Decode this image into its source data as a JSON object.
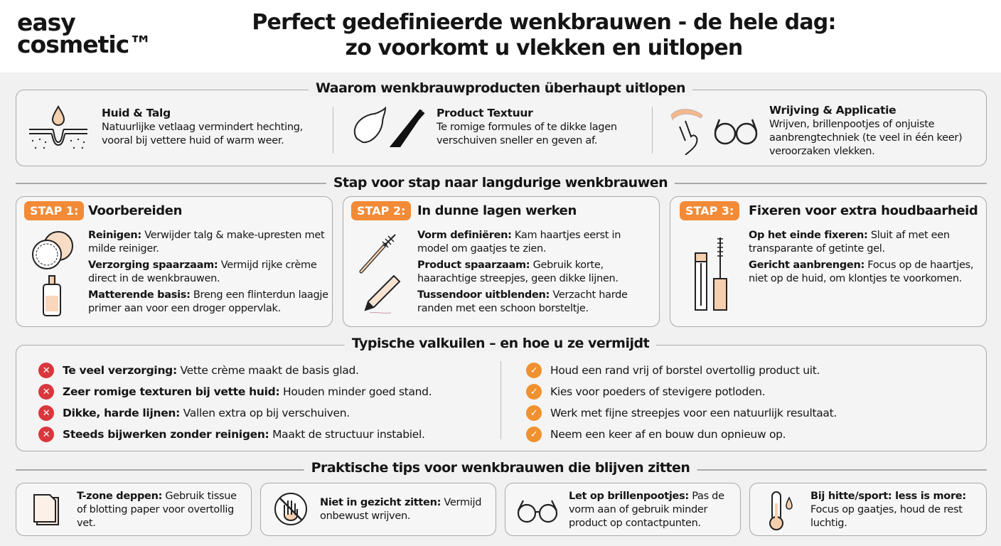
{
  "logo": {
    "line1": "easy",
    "line2": "cosmetic™"
  },
  "title": {
    "line1": "Perfect gedefinieerde wenkbrauwen - de hele dag:",
    "line2": "zo voorkomt u vlekken en uitlopen"
  },
  "colors": {
    "accent": "#f28a36",
    "error": "#d9363e",
    "check": "#f0912f",
    "skin": "#f6cfae"
  },
  "why": {
    "heading": "Waarom wenkbrauwproducten überhaupt uitlopen",
    "items": [
      {
        "icon": "skin-sebum-icon",
        "title": "Huid & Talg",
        "text": "Natuurlijke vetlaag vermindert hechting, vooral bij vettere huid of warm weer."
      },
      {
        "icon": "cream-texture-icon",
        "title": "Product Textuur",
        "text": "Te romige formules of te dikke lagen verschuiven sneller en geven af."
      },
      {
        "icon": "finger-glasses-icon",
        "title": "Wrijving & Applicatie",
        "text": "Wrijven, brillenpootjes of onjuiste aanbrengtechniek (te veel in één keer) veroorzaken vlekken."
      }
    ]
  },
  "steps": {
    "heading": "Stap voor stap naar langdurige wenkbrauwen",
    "items": [
      {
        "badge": "STAP 1:",
        "title": "Voorbereiden",
        "points": [
          {
            "b": "Reinigen:",
            "t": " Verwijder talg & make-upresten met milde reiniger."
          },
          {
            "b": "Verzorging spaarzaam:",
            "t": " Vermijd rijke crème direct in de wenkbrauwen."
          },
          {
            "b": "Matterende basis:",
            "t": " Breng een flinterdun laagje primer aan voor een droger oppervlak."
          }
        ]
      },
      {
        "badge": "STAP 2:",
        "title": "In dunne lagen werken",
        "points": [
          {
            "b": "Vorm definiëren:",
            "t": " Kam haartjes eerst in model om gaatjes te zien."
          },
          {
            "b": "Product spaarzaam:",
            "t": " Gebruik korte, haarachtige streepjes, geen dikke lijnen."
          },
          {
            "b": "Tussendoor uitblenden:",
            "t": " Verzacht harde randen met een schoon borsteltje."
          }
        ]
      },
      {
        "badge": "STAP 3:",
        "title": "Fixeren voor extra houdbaarheid",
        "points": [
          {
            "b": "Op het einde fixeren:",
            "t": " Sluit af met een transparante of getinte gel."
          },
          {
            "b": "Gericht aanbrengen:",
            "t": " Focus op de haartjes, niet op de huid, om klontjes te voorkomen."
          }
        ]
      }
    ]
  },
  "pitfalls": {
    "heading": "Typische valkuilen – en hoe u ze vermijdt",
    "bad": [
      {
        "b": "Te veel verzorging:",
        "t": " Vette crème maakt de basis glad."
      },
      {
        "b": "Zeer romige texturen bij vette huid:",
        "t": " Houden minder goed stand."
      },
      {
        "b": "Dikke, harde lijnen:",
        "t": " Vallen extra op bij verschuiven."
      },
      {
        "b": "Steeds bijwerken zonder reinigen:",
        "t": " Maakt de structuur instabiel."
      }
    ],
    "good": [
      "Houd een rand vrij of borstel overtollig product uit.",
      "Kies voor poeders of stevigere potloden.",
      "Werk met fijne streepjes voor een natuurlijk resultaat.",
      "Neem een keer af en bouw dun opnieuw op."
    ]
  },
  "tips": {
    "heading": "Praktische tips voor wenkbrauwen die blijven zitten",
    "items": [
      {
        "icon": "tissue-icon",
        "b": "T-zone deppen:",
        "t": " Gebruik tissue of blotting paper voor overtollig vet."
      },
      {
        "icon": "no-touch-icon",
        "b": "Niet in gezicht zitten:",
        "t": " Vermijd onbewust wrijven."
      },
      {
        "icon": "glasses-icon",
        "b": "Let op brillenpootjes:",
        "t": " Pas de vorm aan of gebruik minder product op contactpunten."
      },
      {
        "icon": "thermometer-icon",
        "b": "Bij hitte/sport: less is more:",
        "t": " Focus op gaatjes, houd de rest luchtig."
      }
    ]
  }
}
